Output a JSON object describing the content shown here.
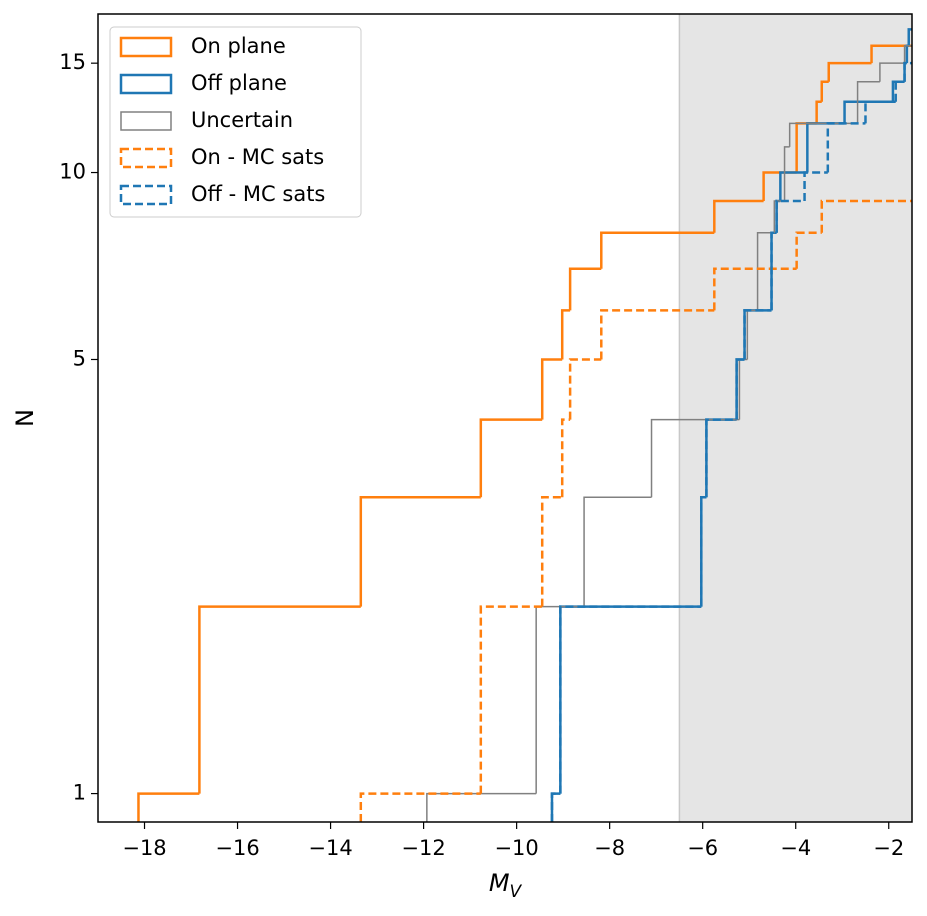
{
  "chart_data": {
    "type": "step",
    "xlabel": {
      "main": "M",
      "sub": "V"
    },
    "ylabel": "N",
    "xlim": [
      -19,
      -1.5
    ],
    "ylim": [
      0.9,
      18
    ],
    "log_y": true,
    "shade_xmin": -6.5,
    "shade_color": "#e5e5e5",
    "legend": "upper left",
    "xticks": [
      {
        "value": -18,
        "label": "−18"
      },
      {
        "value": -16,
        "label": "−16"
      },
      {
        "value": -14,
        "label": "−14"
      },
      {
        "value": -12,
        "label": "−12"
      },
      {
        "value": -10,
        "label": "−10"
      },
      {
        "value": -8,
        "label": "−8"
      },
      {
        "value": -6,
        "label": "−6"
      },
      {
        "value": -4,
        "label": "−4"
      },
      {
        "value": -2,
        "label": "−2"
      }
    ],
    "yticks": [
      1,
      5,
      10,
      15
    ],
    "series": [
      {
        "name": "On plane",
        "color": "#ff7f0e",
        "dashed": false,
        "width": 2.5,
        "x": [
          -18.13,
          -16.82,
          -13.35,
          -10.77,
          -9.45,
          -9.02,
          -8.85,
          -8.18,
          -5.75,
          -4.69,
          -3.98,
          -3.55,
          -3.44,
          -3.29,
          -2.37
        ],
        "values": [
          1,
          2,
          3,
          4,
          5,
          6,
          7,
          8,
          9,
          10,
          12,
          13,
          14,
          15,
          16
        ]
      },
      {
        "name": "Off plane",
        "color": "#1f77b4",
        "dashed": false,
        "width": 2.5,
        "x": [
          -9.24,
          -9.06,
          -6.03,
          -5.92,
          -5.27,
          -5.1,
          -4.52,
          -4.41,
          -4.33,
          -3.75,
          -2.95,
          -1.91,
          -1.66,
          -1.61,
          -1.57
        ],
        "values": [
          1,
          2,
          3,
          4,
          5,
          6,
          8,
          9,
          10,
          12,
          13,
          14,
          15,
          16,
          17
        ]
      },
      {
        "name": "Uncertain",
        "color": "#808080",
        "dashed": false,
        "width": 1.5,
        "x": [
          -11.93,
          -9.58,
          -8.55,
          -7.1,
          -5.21,
          -5.04,
          -4.82,
          -4.46,
          -4.24,
          -4.13,
          -2.67,
          -2.19,
          -1.66
        ],
        "values": [
          1,
          2,
          3,
          4,
          5,
          6,
          8,
          9,
          11,
          12,
          14,
          15,
          16
        ]
      },
      {
        "name": "On - MC sats",
        "color": "#ff7f0e",
        "dashed": true,
        "width": 2.5,
        "x": [
          -13.35,
          -10.77,
          -9.45,
          -9.02,
          -8.85,
          -8.18,
          -5.75,
          -3.98,
          -3.44
        ],
        "values": [
          1,
          2,
          3,
          4,
          5,
          6,
          7,
          8,
          9
        ]
      },
      {
        "name": "Off - MC sats",
        "color": "#1f77b4",
        "dashed": true,
        "width": 2.5,
        "x": [
          -9.24,
          -9.06,
          -6.03,
          -5.92,
          -5.27,
          -5.1,
          -4.52,
          -4.41,
          -3.81,
          -3.31,
          -2.5,
          -1.85,
          -1.66
        ],
        "values": [
          1,
          2,
          3,
          4,
          5,
          6,
          8,
          9,
          10,
          12,
          13,
          14,
          15
        ]
      }
    ]
  }
}
